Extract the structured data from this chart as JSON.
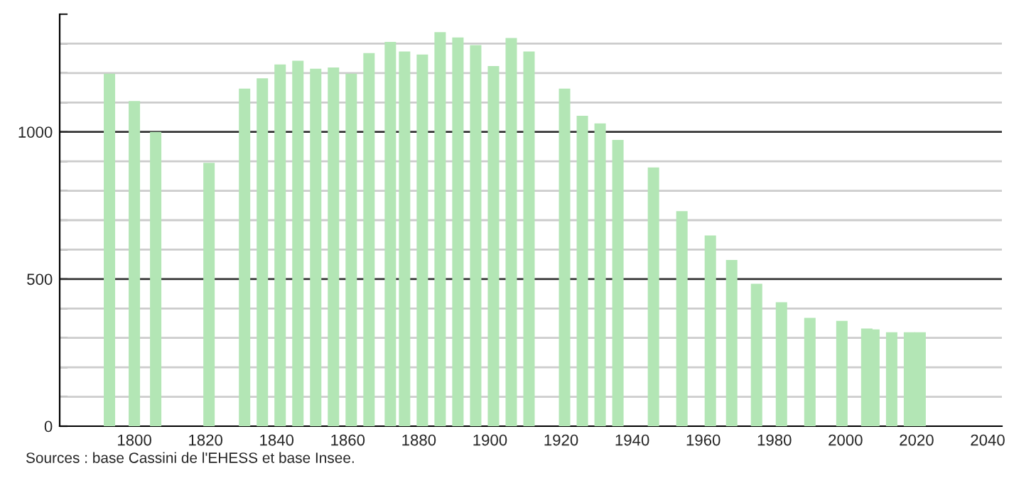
{
  "chart_data": {
    "type": "bar",
    "x": [
      1793,
      1800,
      1806,
      1821,
      1831,
      1836,
      1841,
      1846,
      1851,
      1856,
      1861,
      1866,
      1872,
      1876,
      1881,
      1886,
      1891,
      1896,
      1901,
      1906,
      1911,
      1921,
      1926,
      1931,
      1936,
      1946,
      1954,
      1962,
      1968,
      1975,
      1982,
      1990,
      1999,
      2006,
      2008,
      2013,
      2018,
      2021
    ],
    "values": [
      1198,
      1105,
      1000,
      895,
      1147,
      1182,
      1229,
      1242,
      1215,
      1219,
      1198,
      1268,
      1306,
      1273,
      1263,
      1339,
      1321,
      1295,
      1224,
      1319,
      1273,
      1147,
      1055,
      1029,
      973,
      879,
      731,
      648,
      565,
      484,
      421,
      368,
      358,
      332,
      329,
      319,
      319,
      319
    ],
    "color": "#b3e6b5",
    "xlim": [
      1779,
      2044
    ],
    "xticks": [
      1800,
      1820,
      1840,
      1860,
      1880,
      1900,
      1920,
      1940,
      1960,
      1980,
      2000,
      2020,
      2040
    ],
    "ylim": [
      0,
      1400
    ],
    "yticks": [
      0,
      {
        "value": 100,
        "label": null
      },
      {
        "value": 200,
        "label": null
      },
      {
        "value": 300,
        "label": null
      },
      {
        "value": 400,
        "label": null
      },
      500,
      {
        "value": 600,
        "label": null
      },
      {
        "value": 700,
        "label": null
      },
      {
        "value": 800,
        "label": null
      },
      {
        "value": 900,
        "label": null
      },
      1000,
      {
        "value": 1100,
        "label": null
      },
      {
        "value": 1200,
        "label": null
      },
      {
        "value": 1300,
        "label": null
      },
      {
        "value": 1400,
        "label": null
      }
    ],
    "grid": "y",
    "annotations": [
      "Sources : base Cassini de l'EHESS et base Insee."
    ]
  }
}
